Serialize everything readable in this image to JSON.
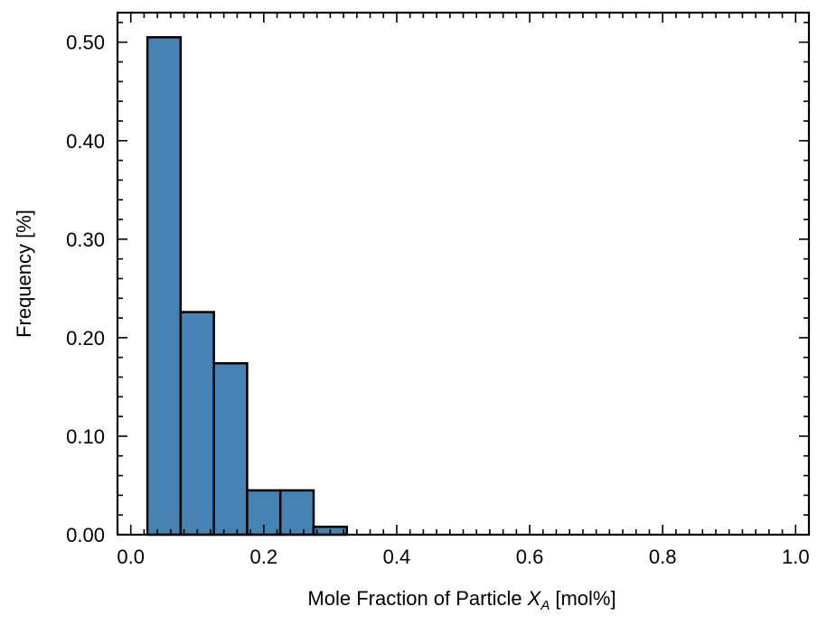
{
  "chart_data": {
    "type": "bar",
    "title": "",
    "xlabel": "Mole Fraction of Particle",
    "xlabel_symbol": "X",
    "xlabel_subscript": "A",
    "xlabel_unit": "[mol%]",
    "ylabel": "Frequency [%]",
    "xlim": [
      -0.02,
      1.02
    ],
    "ylim": [
      0,
      0.53
    ],
    "bin_width": 0.05,
    "bin_starts": [
      0.025,
      0.075,
      0.125,
      0.175,
      0.225,
      0.275,
      0.325,
      0.375,
      0.425,
      0.475,
      0.525,
      0.575,
      0.625,
      0.675,
      0.725,
      0.775,
      0.825,
      0.875,
      0.925
    ],
    "values": [
      0.505,
      0.226,
      0.174,
      0.045,
      0.045,
      0.008,
      0,
      0,
      0,
      0,
      0,
      0,
      0,
      0,
      0,
      0,
      0,
      0,
      0
    ],
    "xticks": [
      0.0,
      0.2,
      0.4,
      0.6,
      0.8,
      1.0
    ],
    "xtick_labels": [
      "0.0",
      "0.2",
      "0.4",
      "0.6",
      "0.8",
      "1.0"
    ],
    "yticks": [
      0,
      0.1,
      0.2,
      0.3,
      0.4,
      0.5
    ],
    "ytick_labels": [
      "0.00",
      "0.10",
      "0.20",
      "0.30",
      "0.40",
      "0.50"
    ],
    "grid": false,
    "bar_color": "#4682b4",
    "edge_color": "#000000"
  }
}
